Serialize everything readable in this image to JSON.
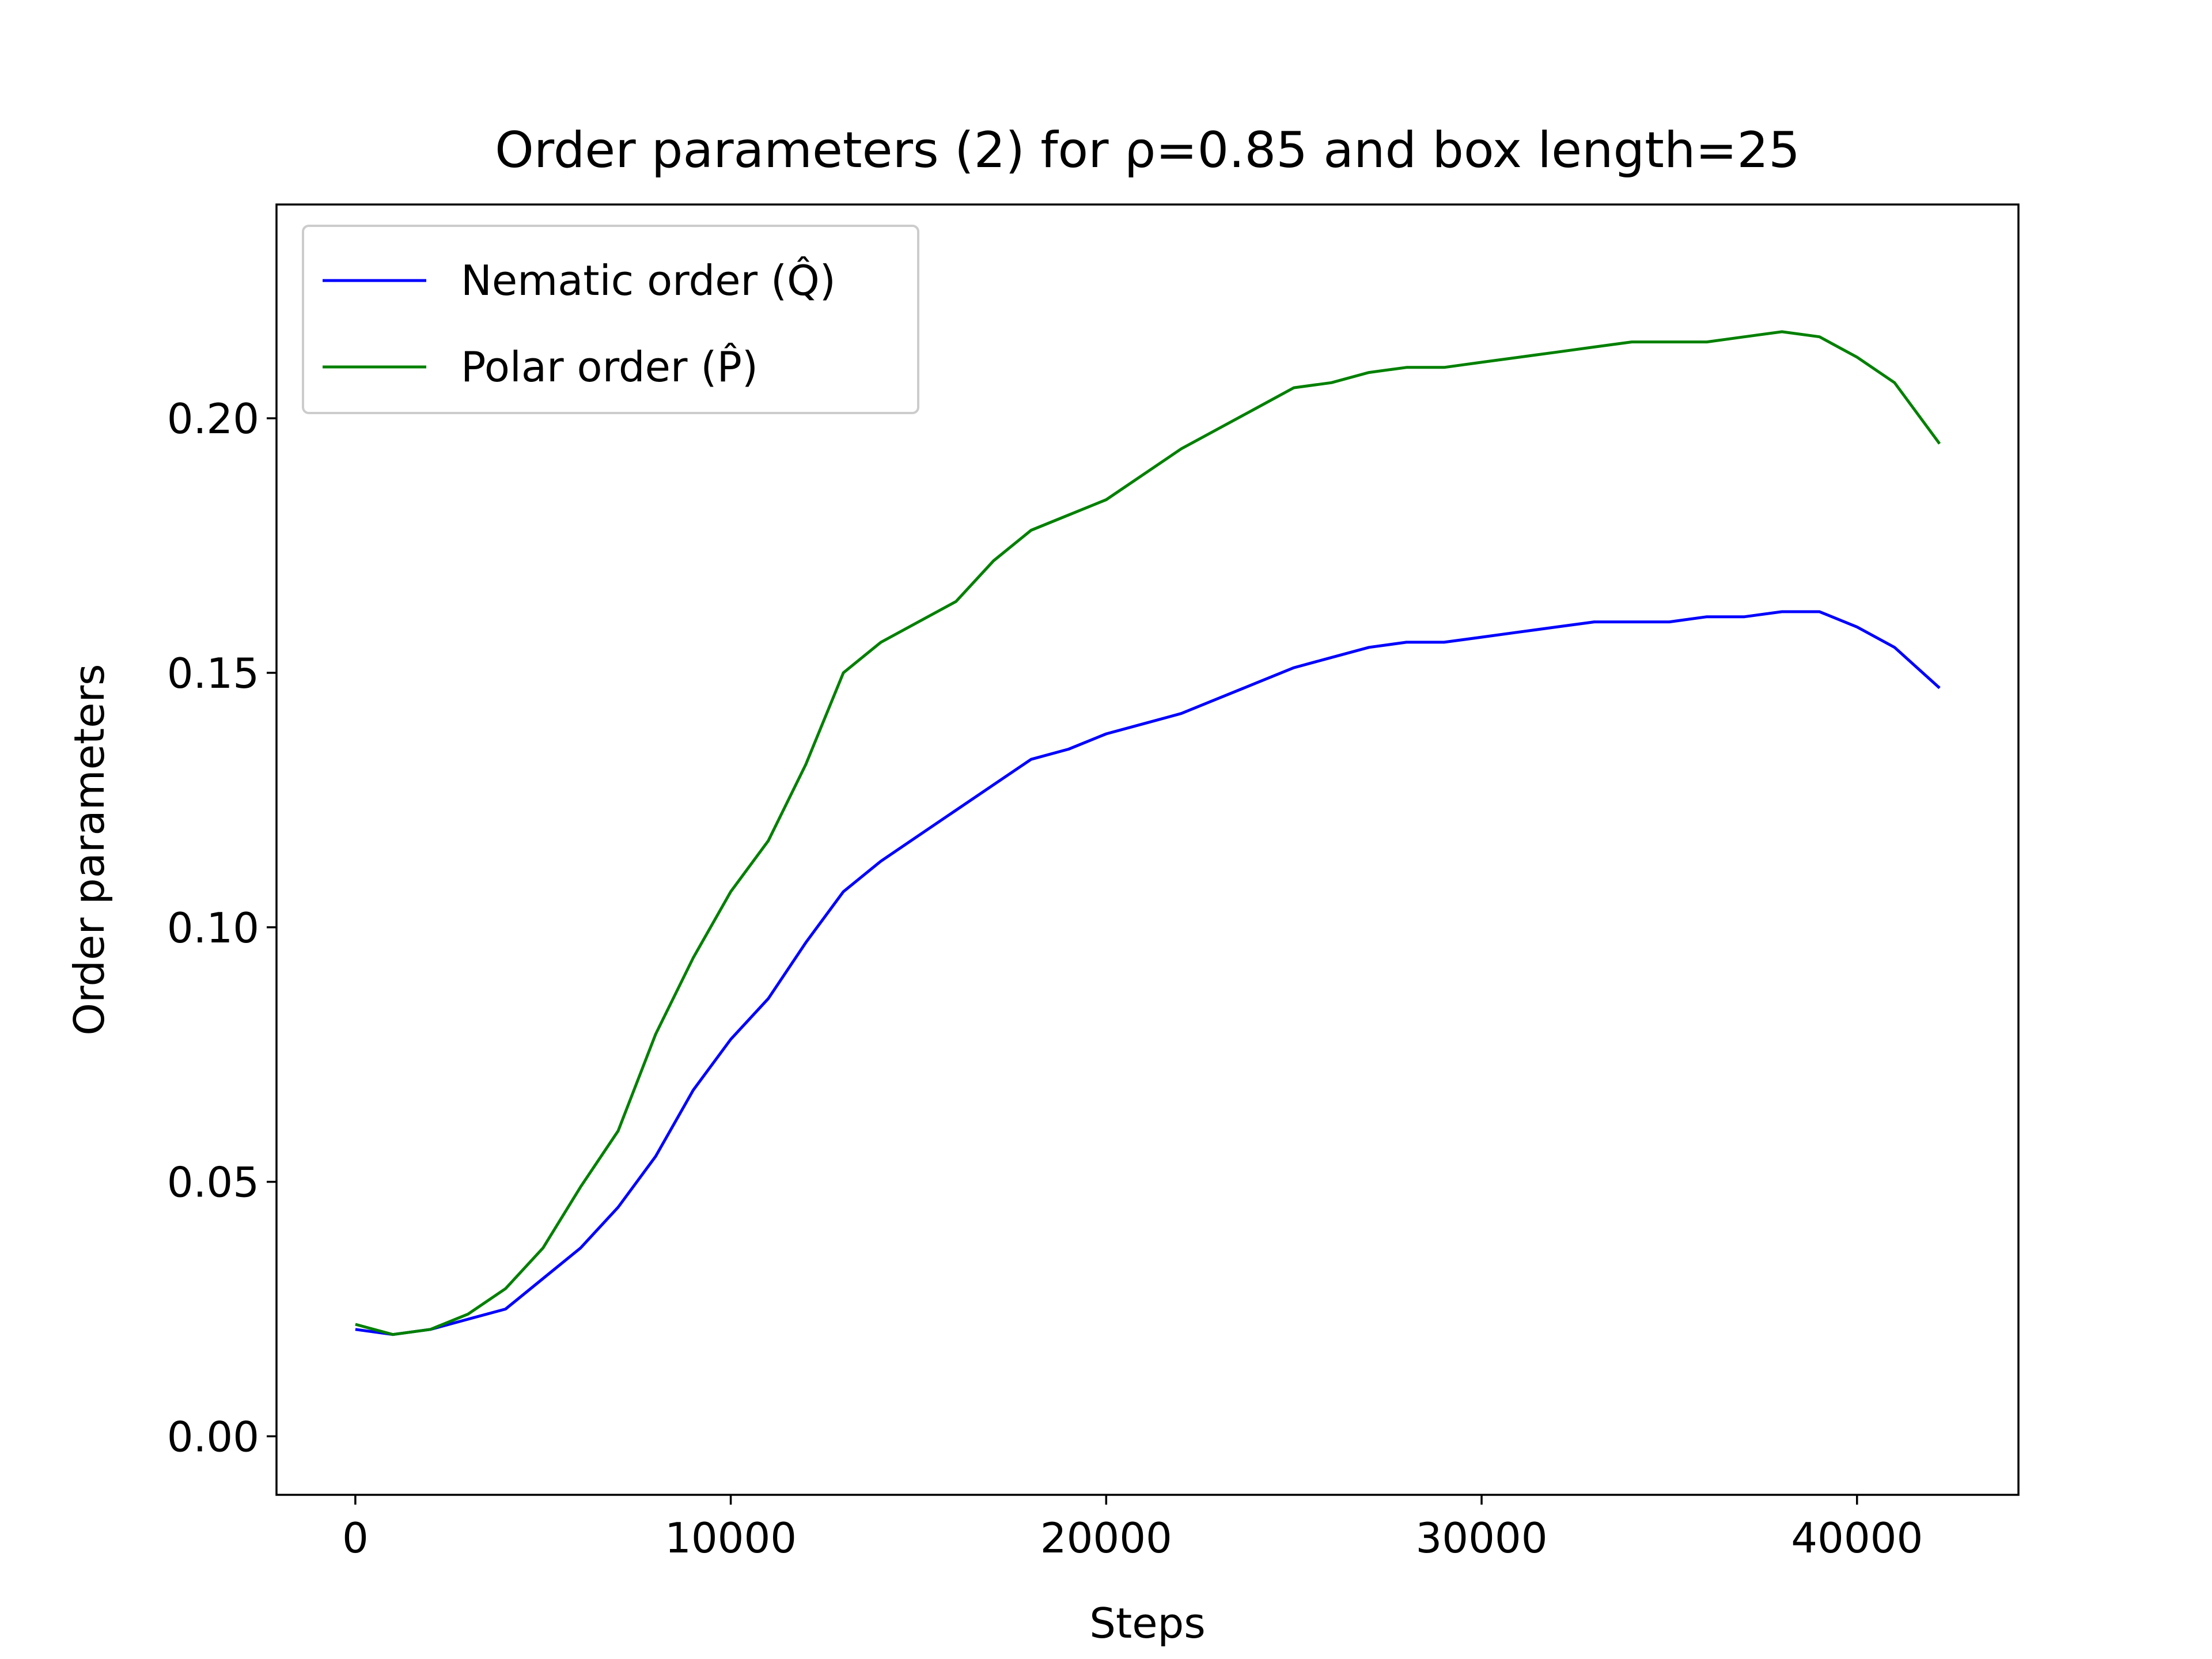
{
  "chart_data": {
    "type": "line",
    "title": "Order parameters (2) for ρ=0.85 and box length=25",
    "xlabel": "Steps",
    "ylabel": "Order parameters",
    "xlim": [
      -2100,
      44300
    ],
    "ylim": [
      -0.0115,
      0.242
    ],
    "x_ticks": [
      0,
      10000,
      20000,
      30000,
      40000
    ],
    "x_tick_labels": [
      "0",
      "10000",
      "20000",
      "30000",
      "40000"
    ],
    "y_ticks": [
      0.0,
      0.05,
      0.1,
      0.15,
      0.2
    ],
    "y_tick_labels": [
      "0.00",
      "0.05",
      "0.10",
      "0.15",
      "0.20"
    ],
    "grid": false,
    "legend_position": "upper-left",
    "x": [
      0,
      1000,
      2000,
      3000,
      4000,
      5000,
      6000,
      7000,
      8000,
      9000,
      10000,
      11000,
      12000,
      13000,
      14000,
      15000,
      16000,
      17000,
      18000,
      19000,
      20000,
      21000,
      22000,
      23000,
      24000,
      25000,
      26000,
      27000,
      28000,
      29000,
      30000,
      31000,
      32000,
      33000,
      34000,
      35000,
      36000,
      37000,
      38000,
      39000,
      40000,
      41000,
      42200
    ],
    "series": [
      {
        "name": "Nematic order (Q̂)",
        "color": "#0000ff",
        "values": [
          0.021,
          0.02,
          0.021,
          0.023,
          0.025,
          0.031,
          0.037,
          0.045,
          0.055,
          0.068,
          0.078,
          0.086,
          0.097,
          0.107,
          0.113,
          0.118,
          0.123,
          0.128,
          0.133,
          0.135,
          0.138,
          0.14,
          0.142,
          0.145,
          0.148,
          0.151,
          0.153,
          0.155,
          0.156,
          0.156,
          0.157,
          0.158,
          0.159,
          0.16,
          0.16,
          0.16,
          0.161,
          0.161,
          0.162,
          0.162,
          0.159,
          0.155,
          0.147
        ]
      },
      {
        "name": "Polar order (P̂)",
        "color": "#008000",
        "values": [
          0.022,
          0.02,
          0.021,
          0.024,
          0.029,
          0.037,
          0.049,
          0.06,
          0.079,
          0.094,
          0.107,
          0.117,
          0.132,
          0.15,
          0.156,
          0.16,
          0.164,
          0.172,
          0.178,
          0.181,
          0.184,
          0.189,
          0.194,
          0.198,
          0.202,
          0.206,
          0.207,
          0.209,
          0.21,
          0.21,
          0.211,
          0.212,
          0.213,
          0.214,
          0.215,
          0.215,
          0.215,
          0.216,
          0.217,
          0.216,
          0.212,
          0.207,
          0.195
        ]
      }
    ]
  }
}
